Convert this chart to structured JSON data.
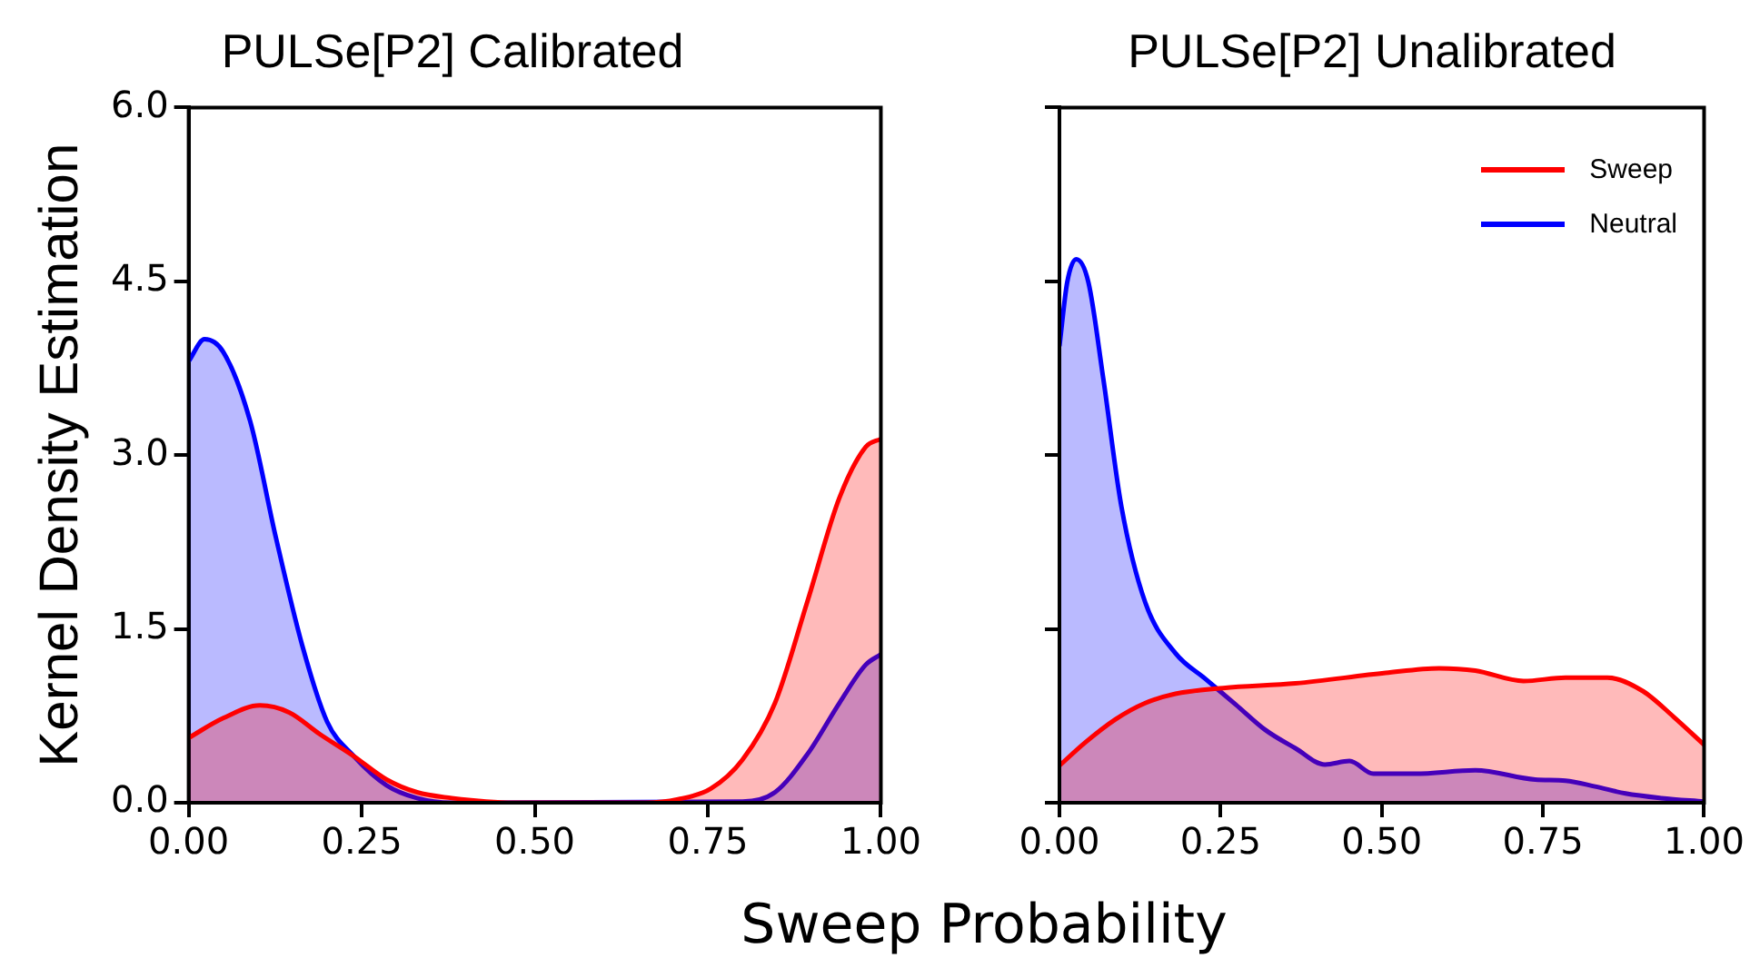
{
  "chart_data": [
    {
      "type": "area",
      "title": "PULSe[P2] Calibrated",
      "xlabel": "Sweep Probability",
      "ylabel": "Kernel Density Estimation",
      "xlim": [
        0,
        1
      ],
      "xticks": [
        {
          "value": 0,
          "label": "0.00"
        },
        {
          "value": 0.25,
          "label": "0.25"
        },
        {
          "value": 0.5,
          "label": "0.50"
        },
        {
          "value": 0.75,
          "label": "0.75"
        },
        {
          "value": 1,
          "label": "1.00"
        }
      ],
      "ylim": [
        0,
        6
      ],
      "yticks": [
        {
          "value": 0,
          "label": "0.0"
        },
        {
          "value": 1.5,
          "label": "1.5"
        },
        {
          "value": 3,
          "label": "3.0"
        },
        {
          "value": 4.5,
          "label": "4.5"
        },
        {
          "value": 6,
          "label": "6.0"
        }
      ],
      "grid": false,
      "legend": false,
      "series": [
        {
          "color": "#ff0000",
          "x": [
            0,
            0.05,
            0.103,
            0.145,
            0.19,
            0.239,
            0.286,
            0.33,
            0.38,
            0.43,
            0.47,
            0.66,
            0.707,
            0.754,
            0.8,
            0.847,
            0.894,
            0.94,
            0.978,
            1
          ],
          "values": [
            0.56,
            0.73,
            0.84,
            0.78,
            0.59,
            0.4,
            0.2,
            0.09,
            0.04,
            0.01,
            0,
            0,
            0.03,
            0.12,
            0.37,
            0.86,
            1.74,
            2.63,
            3.07,
            3.14
          ]
        },
        {
          "color": "#0000ff",
          "x": [
            0,
            0.023,
            0.05,
            0.089,
            0.126,
            0.164,
            0.2,
            0.239,
            0.286,
            0.33,
            0.38,
            0.8,
            0.847,
            0.894,
            0.94,
            0.978,
            1
          ],
          "values": [
            3.81,
            4,
            3.89,
            3.29,
            2.29,
            1.36,
            0.7,
            0.4,
            0.15,
            0.04,
            0,
            0.01,
            0.09,
            0.42,
            0.86,
            1.19,
            1.28
          ]
        }
      ]
    },
    {
      "type": "area",
      "title": "PULSe[P2] Unalibrated",
      "xlim": [
        0,
        1
      ],
      "xticks": [
        {
          "value": 0,
          "label": "0.00"
        },
        {
          "value": 0.25,
          "label": "0.25"
        },
        {
          "value": 0.5,
          "label": "0.50"
        },
        {
          "value": 0.75,
          "label": "0.75"
        },
        {
          "value": 1,
          "label": "1.00"
        }
      ],
      "ylim": [
        0,
        6
      ],
      "yticks": [
        {
          "value": 0,
          "label": null
        },
        {
          "value": 1.5,
          "label": null
        },
        {
          "value": 3,
          "label": null
        },
        {
          "value": 4.5,
          "label": null
        },
        {
          "value": 6,
          "label": null
        }
      ],
      "tick_labels": "x",
      "grid": false,
      "legend": "top right",
      "series": [
        {
          "name": "Sweep",
          "color": "#ff0000",
          "x": [
            0,
            0.04,
            0.087,
            0.133,
            0.18,
            0.254,
            0.366,
            0.506,
            0.589,
            0.645,
            0.72,
            0.785,
            0.85,
            0.906,
            0.953,
            1
          ],
          "values": [
            0.32,
            0.52,
            0.72,
            0.86,
            0.94,
            0.99,
            1.03,
            1.12,
            1.16,
            1.14,
            1.05,
            1.08,
            1.08,
            0.96,
            0.74,
            0.5
          ]
        },
        {
          "name": "Neutral",
          "color": "#0000ff",
          "x": [
            0,
            0.012,
            0.026,
            0.045,
            0.068,
            0.096,
            0.133,
            0.18,
            0.226,
            0.273,
            0.319,
            0.366,
            0.412,
            0.45,
            0.487,
            0.552,
            0.645,
            0.738,
            0.785,
            0.831,
            0.878,
            0.934,
            1
          ],
          "values": [
            3.94,
            4.49,
            4.69,
            4.49,
            3.66,
            2.56,
            1.73,
            1.29,
            1.07,
            0.85,
            0.63,
            0.47,
            0.33,
            0.36,
            0.25,
            0.25,
            0.28,
            0.2,
            0.19,
            0.14,
            0.08,
            0.04,
            0.01
          ]
        }
      ]
    }
  ]
}
